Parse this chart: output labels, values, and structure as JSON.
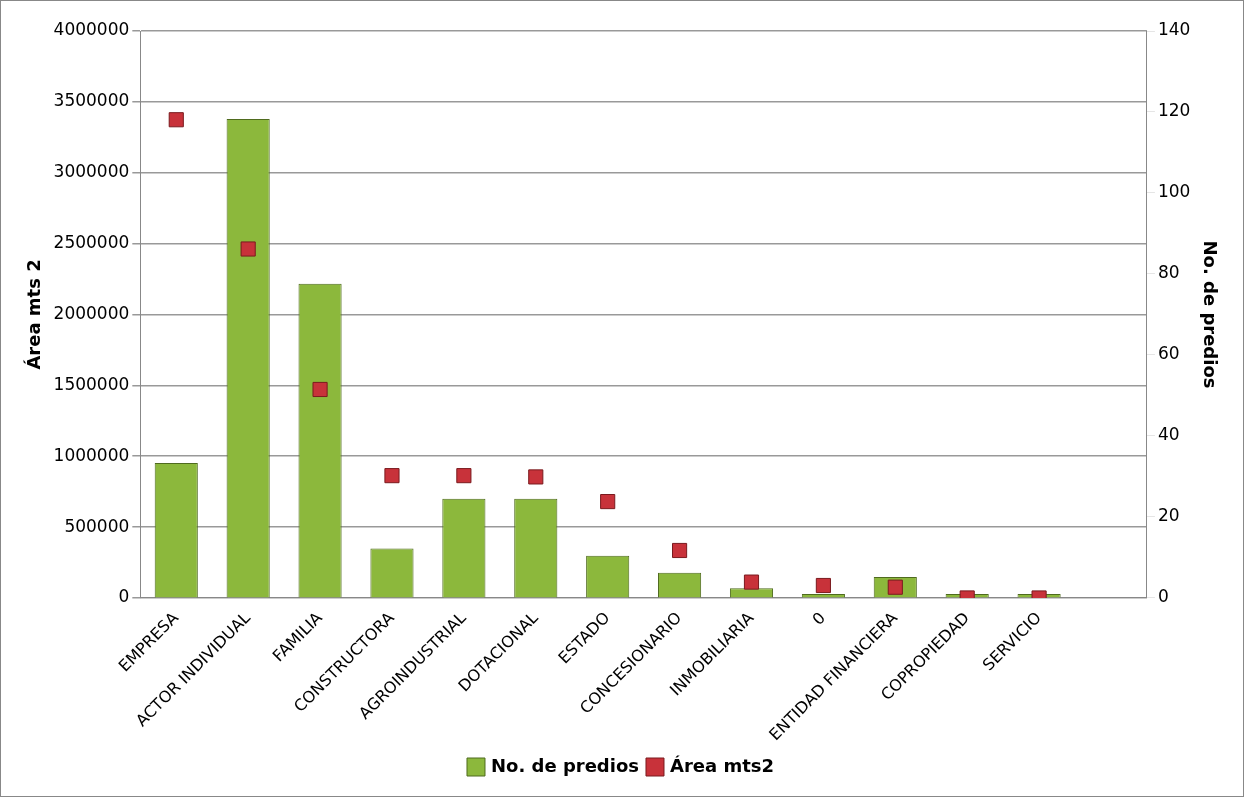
{
  "chart_data": {
    "type": "bar",
    "xlabel": null,
    "ylabel": "Área mts 2",
    "y2label": "No. de predios",
    "categories": [
      "EMPRESA",
      "ACTOR INDIVIDUAL",
      "FAMILIA",
      "CONSTRUCTORA",
      "AGROINDUSTRIAL",
      "DOTACIONAL",
      "ESTADO",
      "CONCESIONARIO",
      "INMOBILIARIA",
      "0",
      "ENTIDAD FINANCIERA",
      "COPROPIEDAD",
      "SERVICIO",
      null
    ],
    "series": [
      {
        "name": "No. de predios",
        "axis": "y2",
        "color": "#8cb83c",
        "values": [
          33.3,
          118.3,
          77.6,
          12.2,
          24.5,
          24.5,
          10.4,
          6.2,
          2.4,
          1,
          5.2,
          1,
          1,
          null
        ]
      },
      {
        "name": "Área mts2",
        "type": "scatter",
        "axis": "y",
        "color": "#c8323a",
        "values": [
          3374000,
          2462000,
          1471000,
          863000,
          863000,
          854000,
          680000,
          335000,
          112000,
          88000,
          76000,
          0,
          0,
          null
        ]
      }
    ],
    "ylim": [
      0,
      4000000
    ],
    "yticks": [
      0,
      500000,
      1000000,
      1500000,
      2000000,
      2500000,
      3000000,
      3500000,
      4000000
    ],
    "y2lim": [
      0,
      140
    ],
    "y2ticks": [
      0,
      20,
      40,
      60,
      80,
      100,
      120,
      140
    ],
    "grid": "y",
    "legend": "bottom",
    "marker": "square"
  }
}
